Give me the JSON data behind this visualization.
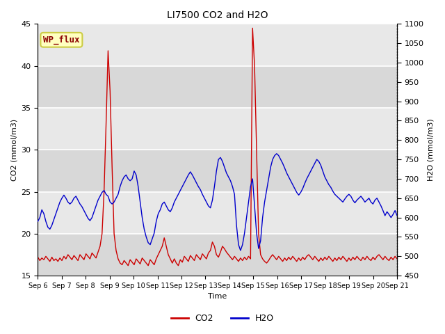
{
  "title": "LI7500 CO2 and H2O",
  "xlabel": "Time",
  "ylabel_left": "CO2 (mmol/m3)",
  "ylabel_right": "H2O (mmol/m3)",
  "ylim_left": [
    15,
    45
  ],
  "ylim_right": [
    450,
    1100
  ],
  "yticks_left": [
    15,
    20,
    25,
    30,
    35,
    40,
    45
  ],
  "yticks_right": [
    450,
    500,
    550,
    600,
    650,
    700,
    750,
    800,
    850,
    900,
    950,
    1000,
    1050,
    1100
  ],
  "xtick_labels": [
    "Sep 6",
    "Sep 7",
    "Sep 8",
    "Sep 9",
    "Sep 10",
    "Sep 11",
    "Sep 12",
    "Sep 13",
    "Sep 14",
    "Sep 15",
    "Sep 16",
    "Sep 17",
    "Sep 18",
    "Sep 19",
    "Sep 20",
    "Sep 21"
  ],
  "watermark_text": "WP_flux",
  "band_colors": [
    "#d8d8d8",
    "#e8e8e8"
  ],
  "co2_color": "#cc0000",
  "h2o_color": "#0000cc",
  "legend_co2": "CO2",
  "legend_h2o": "H2O",
  "co2_data": [
    17.2,
    16.8,
    17.1,
    16.9,
    17.3,
    17.0,
    16.7,
    17.2,
    16.8,
    17.0,
    16.7,
    17.1,
    16.8,
    17.3,
    17.0,
    17.5,
    17.2,
    16.9,
    17.4,
    17.1,
    16.8,
    17.5,
    17.2,
    16.9,
    17.6,
    17.3,
    17.0,
    17.7,
    17.4,
    17.1,
    17.8,
    18.5,
    20.0,
    25.0,
    33.0,
    41.8,
    37.0,
    28.0,
    20.0,
    18.0,
    17.0,
    16.5,
    16.3,
    16.8,
    16.5,
    16.2,
    16.9,
    16.6,
    16.3,
    17.0,
    16.7,
    16.4,
    17.1,
    16.8,
    16.5,
    16.2,
    16.9,
    16.6,
    16.3,
    17.0,
    17.5,
    18.0,
    18.5,
    19.5,
    18.5,
    17.5,
    17.0,
    16.5,
    17.0,
    16.5,
    16.2,
    16.9,
    16.6,
    17.3,
    17.0,
    16.7,
    17.4,
    17.1,
    16.8,
    17.5,
    17.2,
    16.9,
    17.6,
    17.3,
    17.0,
    17.7,
    18.0,
    19.0,
    18.5,
    17.5,
    17.2,
    17.8,
    18.5,
    18.2,
    17.8,
    17.5,
    17.2,
    16.9,
    17.3,
    17.0,
    16.7,
    17.1,
    16.8,
    17.2,
    16.9,
    17.3,
    17.0,
    44.5,
    40.0,
    30.0,
    20.0,
    17.5,
    17.0,
    16.7,
    16.5,
    16.8,
    17.2,
    17.5,
    17.2,
    16.9,
    17.3,
    17.0,
    16.7,
    17.1,
    16.8,
    17.2,
    16.9,
    17.3,
    17.0,
    16.7,
    17.1,
    16.8,
    17.2,
    16.9,
    17.3,
    17.5,
    17.2,
    16.9,
    17.3,
    17.0,
    16.7,
    17.1,
    16.8,
    17.2,
    16.9,
    17.3,
    17.0,
    16.7,
    17.1,
    16.8,
    17.2,
    16.9,
    17.3,
    17.0,
    16.7,
    17.1,
    16.8,
    17.2,
    16.9,
    17.3,
    17.0,
    16.8,
    17.2,
    16.9,
    17.3,
    17.0,
    16.8,
    17.2,
    16.9,
    17.3,
    17.5,
    17.2,
    16.9,
    17.3,
    17.0,
    16.8,
    17.2,
    16.9,
    17.3,
    17.0
  ],
  "h2o_data": [
    590,
    600,
    620,
    610,
    590,
    575,
    570,
    580,
    595,
    610,
    625,
    640,
    650,
    658,
    650,
    640,
    635,
    640,
    650,
    655,
    645,
    635,
    628,
    618,
    608,
    598,
    592,
    600,
    615,
    630,
    645,
    655,
    665,
    670,
    660,
    655,
    640,
    635,
    640,
    650,
    660,
    680,
    695,
    705,
    710,
    700,
    695,
    700,
    720,
    710,
    680,
    640,
    600,
    570,
    550,
    535,
    530,
    545,
    560,
    590,
    610,
    620,
    635,
    640,
    630,
    620,
    615,
    625,
    640,
    650,
    660,
    670,
    680,
    690,
    700,
    710,
    718,
    710,
    700,
    690,
    680,
    672,
    660,
    650,
    640,
    630,
    625,
    645,
    680,
    720,
    750,
    755,
    745,
    730,
    715,
    705,
    695,
    680,
    660,
    580,
    530,
    515,
    530,
    560,
    600,
    640,
    680,
    700,
    630,
    560,
    520,
    540,
    600,
    640,
    670,
    700,
    730,
    750,
    760,
    765,
    760,
    750,
    740,
    728,
    715,
    705,
    695,
    685,
    675,
    665,
    658,
    665,
    675,
    688,
    700,
    710,
    720,
    730,
    740,
    750,
    745,
    735,
    720,
    705,
    695,
    685,
    678,
    668,
    660,
    655,
    650,
    645,
    640,
    648,
    655,
    660,
    655,
    645,
    638,
    645,
    650,
    655,
    648,
    640,
    645,
    650,
    640,
    635,
    645,
    650,
    640,
    630,
    618,
    605,
    615,
    608,
    600,
    608,
    618,
    605
  ]
}
